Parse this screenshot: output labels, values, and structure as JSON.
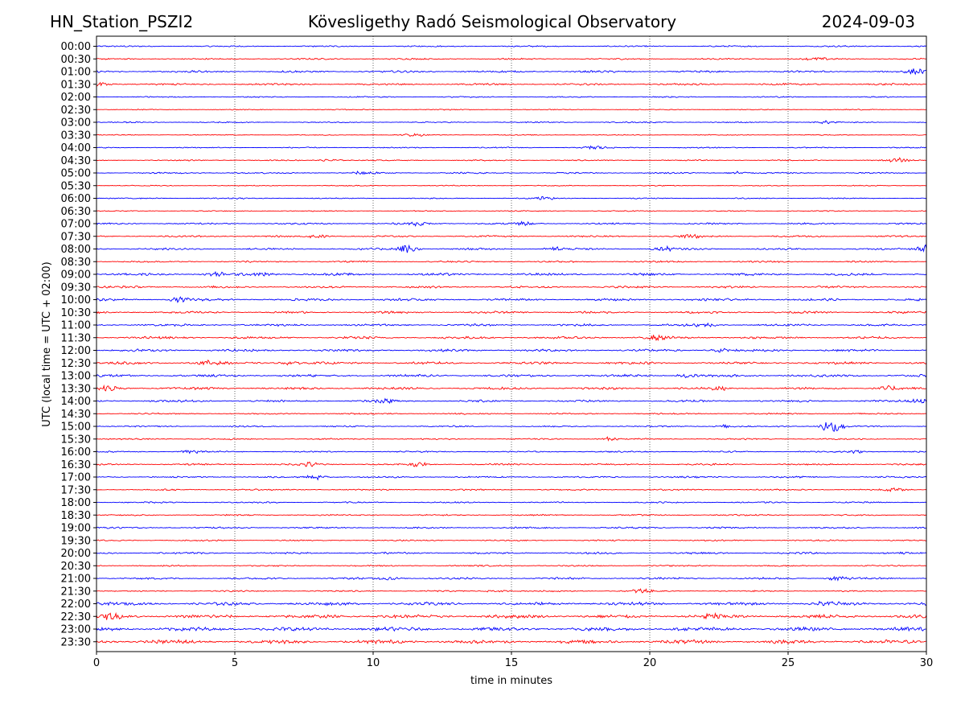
{
  "header": {
    "station": "HN_Station_PSZI2",
    "observatory": "Kövesligethy Radó Seismological Observatory",
    "date": "2024-09-03"
  },
  "chart_data": {
    "type": "line",
    "title": "Kövesligethy Radó Seismological Observatory",
    "xlabel": "time in minutes",
    "ylabel": "UTC (local time = UTC + 02:00)",
    "xlim": [
      0,
      30
    ],
    "xticks": [
      0,
      5,
      10,
      15,
      20,
      25,
      30
    ],
    "vertical_gridlines_at": [
      5,
      10,
      15,
      20,
      25
    ],
    "row_labels": [
      "00:00",
      "00:30",
      "01:00",
      "01:30",
      "02:00",
      "02:30",
      "03:00",
      "03:30",
      "04:00",
      "04:30",
      "05:00",
      "05:30",
      "06:00",
      "06:30",
      "07:00",
      "07:30",
      "08:00",
      "08:30",
      "09:00",
      "09:30",
      "10:00",
      "10:30",
      "11:00",
      "11:30",
      "12:00",
      "12:30",
      "13:00",
      "13:30",
      "14:00",
      "14:30",
      "15:00",
      "15:30",
      "16:00",
      "16:30",
      "17:00",
      "17:30",
      "18:00",
      "18:30",
      "19:00",
      "19:30",
      "20:00",
      "20:30",
      "21:00",
      "21:30",
      "22:00",
      "22:30",
      "23:00",
      "23:30"
    ],
    "trace_colors": [
      "#0000ff",
      "#ff0000"
    ],
    "noise_level": [
      0.6,
      0.6,
      0.8,
      0.8,
      0.5,
      0.4,
      0.5,
      0.4,
      0.5,
      0.5,
      0.6,
      0.4,
      0.5,
      0.4,
      0.7,
      0.7,
      0.8,
      0.7,
      1.0,
      0.9,
      1.0,
      0.9,
      0.9,
      1.0,
      1.0,
      1.0,
      1.0,
      1.0,
      0.9,
      0.6,
      0.6,
      0.6,
      0.6,
      0.7,
      0.7,
      0.6,
      0.6,
      0.6,
      0.7,
      0.6,
      0.8,
      0.6,
      0.8,
      0.6,
      1.3,
      1.5,
      1.6,
      1.6
    ],
    "events": [
      {
        "row": "00:30",
        "t": 26.0,
        "amp": 1.5
      },
      {
        "row": "01:00",
        "t": 29.6,
        "amp": 2.5
      },
      {
        "row": "01:30",
        "t": 0.1,
        "amp": 2.0
      },
      {
        "row": "03:00",
        "t": 26.3,
        "amp": 1.2
      },
      {
        "row": "03:30",
        "t": 11.5,
        "amp": 1.8
      },
      {
        "row": "04:00",
        "t": 18.0,
        "amp": 2.0
      },
      {
        "row": "04:30",
        "t": 8.5,
        "amp": 1.5
      },
      {
        "row": "04:30",
        "t": 29.0,
        "amp": 2.0
      },
      {
        "row": "05:00",
        "t": 9.7,
        "amp": 1.8
      },
      {
        "row": "05:00",
        "t": 23.2,
        "amp": 1.8
      },
      {
        "row": "06:00",
        "t": 16.2,
        "amp": 1.5
      },
      {
        "row": "07:00",
        "t": 11.6,
        "amp": 1.5
      },
      {
        "row": "07:00",
        "t": 15.4,
        "amp": 1.5
      },
      {
        "row": "07:30",
        "t": 8.0,
        "amp": 2.0
      },
      {
        "row": "07:30",
        "t": 21.5,
        "amp": 1.8
      },
      {
        "row": "08:00",
        "t": 11.2,
        "amp": 5.0
      },
      {
        "row": "08:00",
        "t": 16.6,
        "amp": 2.0
      },
      {
        "row": "08:00",
        "t": 20.5,
        "amp": 2.0
      },
      {
        "row": "08:00",
        "t": 29.9,
        "amp": 4.0
      },
      {
        "row": "09:00",
        "t": 4.3,
        "amp": 2.0
      },
      {
        "row": "09:00",
        "t": 6.0,
        "amp": 1.5
      },
      {
        "row": "10:00",
        "t": 3.0,
        "amp": 2.0
      },
      {
        "row": "11:00",
        "t": 22.0,
        "amp": 2.0
      },
      {
        "row": "11:30",
        "t": 20.2,
        "amp": 2.0
      },
      {
        "row": "12:00",
        "t": 22.6,
        "amp": 2.0
      },
      {
        "row": "12:30",
        "t": 4.0,
        "amp": 2.0
      },
      {
        "row": "12:30",
        "t": 7.0,
        "amp": 2.0
      },
      {
        "row": "13:00",
        "t": 21.3,
        "amp": 1.8
      },
      {
        "row": "13:30",
        "t": 0.4,
        "amp": 2.5
      },
      {
        "row": "13:30",
        "t": 22.5,
        "amp": 1.8
      },
      {
        "row": "13:30",
        "t": 28.6,
        "amp": 2.0
      },
      {
        "row": "14:00",
        "t": 10.5,
        "amp": 1.8
      },
      {
        "row": "14:00",
        "t": 29.8,
        "amp": 2.0
      },
      {
        "row": "15:00",
        "t": 26.6,
        "amp": 10.0
      },
      {
        "row": "15:00",
        "t": 22.7,
        "amp": 1.5
      },
      {
        "row": "15:30",
        "t": 18.5,
        "amp": 1.8
      },
      {
        "row": "16:00",
        "t": 3.4,
        "amp": 2.0
      },
      {
        "row": "16:00",
        "t": 27.4,
        "amp": 1.5
      },
      {
        "row": "16:30",
        "t": 7.7,
        "amp": 2.0
      },
      {
        "row": "16:30",
        "t": 11.6,
        "amp": 2.0
      },
      {
        "row": "17:00",
        "t": 8.0,
        "amp": 2.5
      },
      {
        "row": "17:30",
        "t": 28.8,
        "amp": 1.5
      },
      {
        "row": "21:00",
        "t": 26.8,
        "amp": 2.5
      },
      {
        "row": "21:00",
        "t": 10.6,
        "amp": 1.5
      },
      {
        "row": "21:30",
        "t": 19.7,
        "amp": 2.0
      },
      {
        "row": "21:30",
        "t": 14.4,
        "amp": 1.5
      },
      {
        "row": "22:00",
        "t": 26.4,
        "amp": 2.0
      },
      {
        "row": "22:30",
        "t": 22.2,
        "amp": 2.2
      },
      {
        "row": "22:30",
        "t": 0.5,
        "amp": 2.0
      }
    ]
  }
}
